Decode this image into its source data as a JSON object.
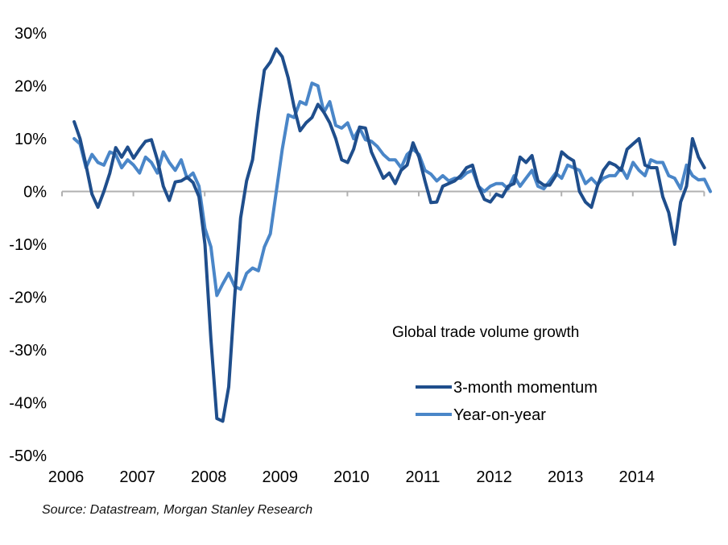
{
  "chart_data": {
    "type": "line",
    "title": "Global trade volume growth",
    "xlabel": "",
    "ylabel": "",
    "ylim": [
      -50,
      30
    ],
    "yticks": [
      "30%",
      "20%",
      "10%",
      "0%",
      "-10%",
      "-20%",
      "-30%",
      "-40%",
      "-50%"
    ],
    "ytick_values": [
      30,
      20,
      10,
      0,
      -10,
      -20,
      -30,
      -40,
      -50
    ],
    "xticks": [
      "2006",
      "2007",
      "2008",
      "2009",
      "2010",
      "2011",
      "2012",
      "2013",
      "2014"
    ],
    "xlim": [
      2006,
      2015
    ],
    "grid": false,
    "legend_position": "center-right",
    "x_start": 2006.17,
    "x_step_months": 1,
    "series": [
      {
        "name": "3-month momentum",
        "color": "#1F4E8C",
        "values": [
          13.2,
          10,
          5,
          -0.5,
          -3,
          0,
          3.5,
          8.3,
          6.5,
          8.4,
          6.3,
          8,
          9.5,
          9.8,
          6,
          1,
          -1.7,
          1.8,
          2,
          2.7,
          1.7,
          -1,
          -10,
          -28,
          -43,
          -43.5,
          -37,
          -20,
          -5,
          2,
          6,
          15,
          23,
          24.5,
          27,
          25.5,
          21.5,
          16,
          11.5,
          13,
          14,
          16.5,
          15,
          13,
          10,
          6,
          5.5,
          8,
          12.2,
          12,
          7.5,
          5,
          2.5,
          3.5,
          1.5,
          4,
          5,
          9.2,
          6.5,
          2,
          -2.1,
          -2,
          1,
          1.5,
          2,
          3,
          4.5,
          5,
          1,
          -1.5,
          -2,
          -0.5,
          -1,
          1,
          1.5,
          6.5,
          5.5,
          6.8,
          2,
          1.2,
          1.2,
          3,
          7.5,
          6.5,
          5.8,
          0,
          -2,
          -3,
          1,
          4,
          5.5,
          5,
          4,
          8,
          9,
          10,
          5,
          4.5,
          4.5,
          -1,
          -4,
          -10,
          -2,
          1,
          10,
          6.5,
          4.5
        ]
      },
      {
        "name": "Year-on-year",
        "color": "#4A86C8",
        "values": [
          10,
          9,
          4.5,
          7,
          5.5,
          5,
          7.5,
          7,
          4.5,
          6,
          5,
          3.5,
          6.5,
          5.5,
          3.5,
          7.5,
          5.5,
          4,
          6,
          2.5,
          3.5,
          1,
          -7,
          -10.5,
          -19.7,
          -17.5,
          -15.5,
          -18,
          -18.5,
          -15.5,
          -14.5,
          -15,
          -10.5,
          -8,
          0,
          8,
          14.5,
          14,
          17,
          16.5,
          20.5,
          20,
          15,
          17,
          12.5,
          12,
          13,
          10,
          12,
          9.8,
          9.5,
          8.5,
          7,
          6,
          6,
          4.5,
          7,
          8,
          7,
          4,
          3.3,
          2,
          3,
          2,
          2.5,
          2.5,
          3.5,
          4,
          1,
          0,
          1,
          1.5,
          1.5,
          0.5,
          3,
          1,
          2.5,
          4,
          1,
          0.5,
          2,
          3.5,
          2.5,
          5,
          4.5,
          4,
          1.5,
          2.5,
          1.3,
          2.5,
          3,
          3,
          4.5,
          2.5,
          5.5,
          4,
          3,
          6,
          5.5,
          5.5,
          3,
          2.5,
          0.5,
          5,
          3,
          2.2,
          2.3,
          0
        ]
      }
    ],
    "annotations": [
      "Global trade volume growth"
    ],
    "source": "Source: Datastream,  Morgan Stanley Research"
  },
  "legend": {
    "items": [
      "3-month momentum",
      "Year-on-year"
    ]
  }
}
